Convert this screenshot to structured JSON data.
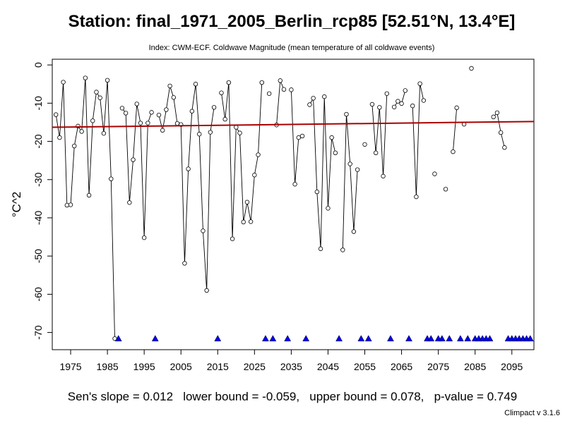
{
  "chart_data": {
    "type": "line",
    "title": "Station: final_1971_2005_Berlin_rcp85 [52.51°N, 13.4°E]",
    "subtitle": "Index: CWM-ECF. Coldwave Magnitude (mean temperature of all coldwave events)",
    "xlabel": "",
    "ylabel": "°C^2",
    "xlim": [
      1970,
      2101
    ],
    "ylim": [
      -74.5,
      1.5
    ],
    "x_ticks": [
      1975,
      1985,
      1995,
      2005,
      2015,
      2025,
      2035,
      2045,
      2055,
      2065,
      2075,
      2085,
      2095
    ],
    "y_ticks": [
      0,
      -10,
      -20,
      -30,
      -40,
      -50,
      -60,
      -70
    ],
    "grid": false,
    "series": [
      {
        "values": [
          [
            1971,
            -13
          ],
          [
            1972,
            -19
          ],
          [
            1973,
            -4.5
          ],
          [
            1974,
            -36.7
          ],
          [
            1975,
            -36.6
          ],
          [
            1976,
            -21.2
          ],
          [
            1977,
            -16
          ],
          [
            1978,
            -17.4
          ],
          [
            1979,
            -3.4
          ],
          [
            1980,
            -34.1
          ],
          [
            1981,
            -14.6
          ],
          [
            1982,
            -7.1
          ],
          [
            1983,
            -8.6
          ],
          [
            1984,
            -17.9
          ],
          [
            1985,
            -4
          ],
          [
            1986,
            -29.8
          ],
          [
            1987,
            -71.6
          ],
          [
            1988,
            null
          ],
          [
            1989,
            -11.3
          ],
          [
            1990,
            -12.6
          ],
          [
            1991,
            -36
          ],
          [
            1992,
            -24.8
          ],
          [
            1993,
            -10.2
          ],
          [
            1994,
            -15.2
          ],
          [
            1995,
            -45.2
          ],
          [
            1996,
            -15.2
          ],
          [
            1997,
            -12.4
          ],
          [
            1998,
            null
          ],
          [
            1999,
            -13.1
          ],
          [
            2000,
            -17.1
          ],
          [
            2001,
            -11.7
          ],
          [
            2002,
            -5.5
          ],
          [
            2003,
            -8.5
          ],
          [
            2004,
            -15.3
          ],
          [
            2005,
            -15.6
          ],
          [
            2006,
            -51.9
          ],
          [
            2007,
            -27.2
          ],
          [
            2008,
            -12.1
          ],
          [
            2009,
            -5
          ],
          [
            2010,
            -18.1
          ],
          [
            2011,
            -43.4
          ],
          [
            2012,
            -59
          ],
          [
            2013,
            -17.6
          ],
          [
            2014,
            -11.1
          ],
          [
            2015,
            null
          ],
          [
            2016,
            -7.3
          ],
          [
            2017,
            -14.2
          ],
          [
            2018,
            -4.6
          ],
          [
            2019,
            -45.5
          ],
          [
            2020,
            -16.3
          ],
          [
            2021,
            -17.8
          ],
          [
            2022,
            -41.1
          ],
          [
            2023,
            -35.9
          ],
          [
            2024,
            -41
          ],
          [
            2025,
            -28.8
          ],
          [
            2026,
            -23.5
          ],
          [
            2027,
            -4.6
          ],
          [
            2028,
            null
          ],
          [
            2029,
            -7.5
          ],
          [
            2030,
            null
          ],
          [
            2031,
            -15.7
          ],
          [
            2032,
            -4.1
          ],
          [
            2033,
            -6.4
          ],
          [
            2034,
            null
          ],
          [
            2035,
            -6.5
          ],
          [
            2036,
            -31.2
          ],
          [
            2037,
            -19
          ],
          [
            2038,
            -18.6
          ],
          [
            2039,
            null
          ],
          [
            2040,
            -10.4
          ],
          [
            2041,
            -8.7
          ],
          [
            2042,
            -33.2
          ],
          [
            2043,
            -48.1
          ],
          [
            2044,
            -8.3
          ],
          [
            2045,
            -37.5
          ],
          [
            2046,
            -19
          ],
          [
            2047,
            -23
          ],
          [
            2048,
            null
          ],
          [
            2049,
            -48.4
          ],
          [
            2050,
            -12.9
          ],
          [
            2051,
            -25.9
          ],
          [
            2052,
            -43.6
          ],
          [
            2053,
            -27.4
          ],
          [
            2054,
            null
          ],
          [
            2055,
            -20.8
          ],
          [
            2056,
            null
          ],
          [
            2057,
            -10.3
          ],
          [
            2058,
            -23
          ],
          [
            2059,
            -11.1
          ],
          [
            2060,
            -29.1
          ],
          [
            2061,
            -7.5
          ],
          [
            2062,
            null
          ],
          [
            2063,
            -11
          ],
          [
            2064,
            -9.5
          ],
          [
            2065,
            -10.1
          ],
          [
            2066,
            -6.7
          ],
          [
            2067,
            null
          ],
          [
            2068,
            -10.7
          ],
          [
            2069,
            -34.5
          ],
          [
            2070,
            -4.9
          ],
          [
            2071,
            -9.3
          ],
          [
            2072,
            null
          ],
          [
            2073,
            null
          ],
          [
            2074,
            -28.5
          ],
          [
            2075,
            null
          ],
          [
            2076,
            null
          ],
          [
            2077,
            -32.5
          ],
          [
            2078,
            null
          ],
          [
            2079,
            -22.7
          ],
          [
            2080,
            -11.2
          ],
          [
            2081,
            null
          ],
          [
            2082,
            -15.5
          ],
          [
            2083,
            null
          ],
          [
            2084,
            -0.9
          ],
          [
            2085,
            null
          ],
          [
            2086,
            null
          ],
          [
            2087,
            null
          ],
          [
            2088,
            null
          ],
          [
            2089,
            null
          ],
          [
            2090,
            -13.6
          ],
          [
            2091,
            -12.5
          ],
          [
            2092,
            -17.7
          ],
          [
            2093,
            -21.6
          ],
          [
            2094,
            null
          ],
          [
            2095,
            null
          ],
          [
            2096,
            null
          ],
          [
            2097,
            null
          ],
          [
            2098,
            null
          ],
          [
            2099,
            null
          ],
          [
            2100,
            null
          ]
        ]
      }
    ],
    "missing_years": [
      1988,
      1998,
      2015,
      2028,
      2030,
      2034,
      2039,
      2048,
      2054,
      2056,
      2062,
      2067,
      2072,
      2073,
      2075,
      2076,
      2078,
      2081,
      2083,
      2085,
      2086,
      2087,
      2088,
      2089,
      2094,
      2095,
      2096,
      2097,
      2098,
      2099,
      2100
    ],
    "missing_marker_value": -71.6,
    "trend_line": {
      "from": [
        1970,
        -16.3
      ],
      "to": [
        2101,
        -14.8
      ]
    },
    "colors": {
      "series": "#000000",
      "trend": "#aa0000",
      "missing_marker": "#0000ff"
    }
  },
  "footer": {
    "stats": "Sen's slope = 0.012   lower bound = -0.059,   upper bound = 0.078,   p-value = 0.749",
    "version": "Climpact v 3.1.6"
  }
}
